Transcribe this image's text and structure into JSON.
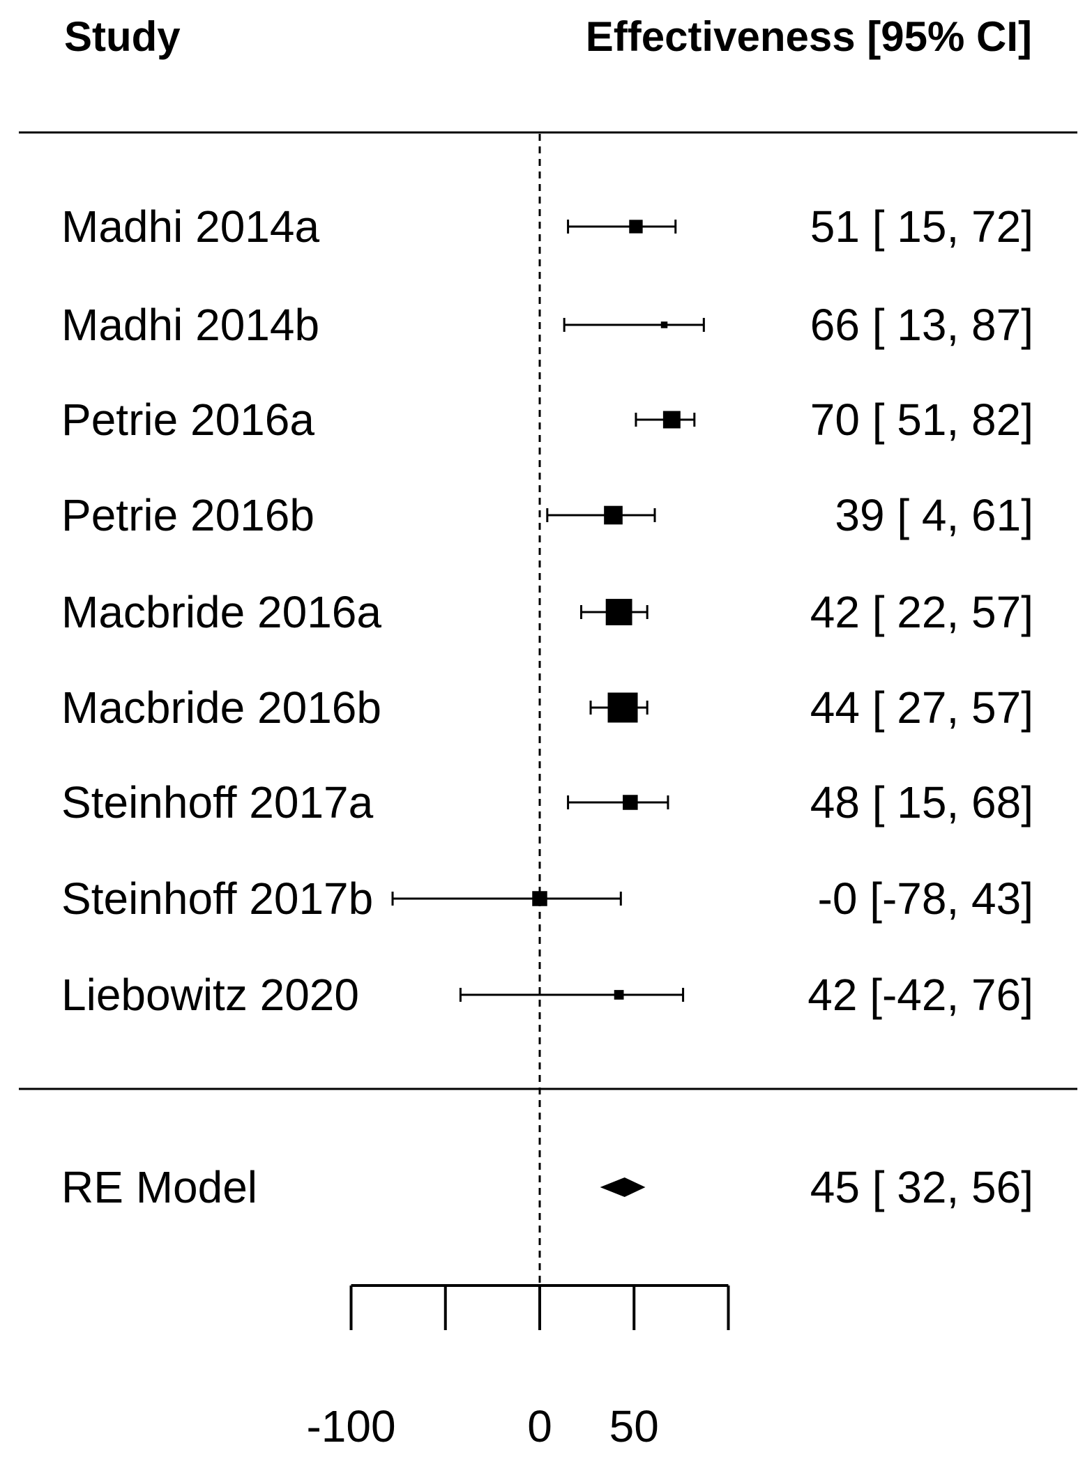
{
  "chart_data": {
    "type": "forest",
    "header": {
      "study": "Study",
      "effect": "Effectiveness [95% CI]"
    },
    "reference_line": 0,
    "xlim": [
      -100,
      100
    ],
    "ticks": [
      -100,
      -50,
      0,
      50,
      100
    ],
    "tick_labels": [
      "-100",
      "",
      "0",
      "50",
      ""
    ],
    "studies": [
      {
        "name": "Madhi 2014a",
        "est": 51,
        "lo": 15,
        "hi": 72,
        "label": "51 [ 15, 72]",
        "weight": 0.45
      },
      {
        "name": "Madhi 2014b",
        "est": 66,
        "lo": 13,
        "hi": 87,
        "label": "66 [ 13, 87]",
        "weight": 0.22
      },
      {
        "name": "Petrie 2016a",
        "est": 70,
        "lo": 51,
        "hi": 82,
        "label": "70 [ 51, 82]",
        "weight": 0.58
      },
      {
        "name": "Petrie 2016b",
        "est": 39,
        "lo": 4,
        "hi": 61,
        "label": "39 [  4, 61]",
        "weight": 0.62
      },
      {
        "name": "Macbride 2016a",
        "est": 42,
        "lo": 22,
        "hi": 57,
        "label": "42 [ 22, 57]",
        "weight": 0.88
      },
      {
        "name": "Macbride 2016b",
        "est": 44,
        "lo": 27,
        "hi": 57,
        "label": "44 [ 27, 57]",
        "weight": 1.0
      },
      {
        "name": "Steinhoff 2017a",
        "est": 48,
        "lo": 15,
        "hi": 68,
        "label": "48 [ 15, 68]",
        "weight": 0.5
      },
      {
        "name": "Steinhoff 2017b",
        "est": 0,
        "lo": -78,
        "hi": 43,
        "label": "-0 [-78, 43]",
        "weight": 0.5
      },
      {
        "name": "Liebowitz 2020",
        "est": 42,
        "lo": -42,
        "hi": 76,
        "label": "42 [-42, 76]",
        "weight": 0.32
      }
    ],
    "summary": {
      "name": "RE Model",
      "est": 45,
      "lo": 32,
      "hi": 56,
      "label": "45 [ 32, 56]"
    }
  }
}
